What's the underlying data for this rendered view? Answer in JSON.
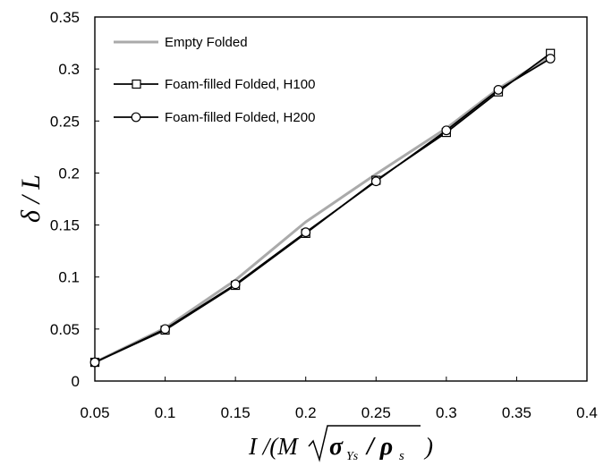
{
  "chart_data": {
    "type": "line",
    "xlabel": "I /(M √(σ_Ys / ρ_s))",
    "ylabel": "δ / L",
    "xlim": [
      0.05,
      0.4
    ],
    "ylim": [
      0,
      0.35
    ],
    "x_ticks": [
      "0.05",
      "0.1",
      "0.15",
      "0.2",
      "0.25",
      "0.3",
      "0.35",
      "0.4"
    ],
    "y_ticks": [
      "0",
      "0.05",
      "0.1",
      "0.15",
      "0.2",
      "0.25",
      "0.3",
      "0.35"
    ],
    "grid": false,
    "legend_position": "top-left",
    "series": [
      {
        "name": "Empty Folded",
        "marker": "none",
        "color": "#aaaaaa",
        "x": [
          0.05,
          0.1,
          0.15,
          0.2,
          0.25,
          0.3,
          0.337,
          0.374
        ],
        "y": [
          0.018,
          0.051,
          0.097,
          0.153,
          0.199,
          0.243,
          0.281,
          0.312
        ]
      },
      {
        "name": "Foam-filled Folded, H100",
        "marker": "square",
        "color": "#000000",
        "x": [
          0.05,
          0.1,
          0.15,
          0.2,
          0.25,
          0.3,
          0.337,
          0.374
        ],
        "y": [
          0.018,
          0.049,
          0.092,
          0.142,
          0.193,
          0.239,
          0.278,
          0.315
        ]
      },
      {
        "name": "Foam-filled Folded, H200",
        "marker": "circle",
        "color": "#000000",
        "x": [
          0.05,
          0.1,
          0.15,
          0.2,
          0.25,
          0.3,
          0.337,
          0.374
        ],
        "y": [
          0.018,
          0.05,
          0.093,
          0.143,
          0.192,
          0.241,
          0.28,
          0.31
        ]
      }
    ]
  }
}
